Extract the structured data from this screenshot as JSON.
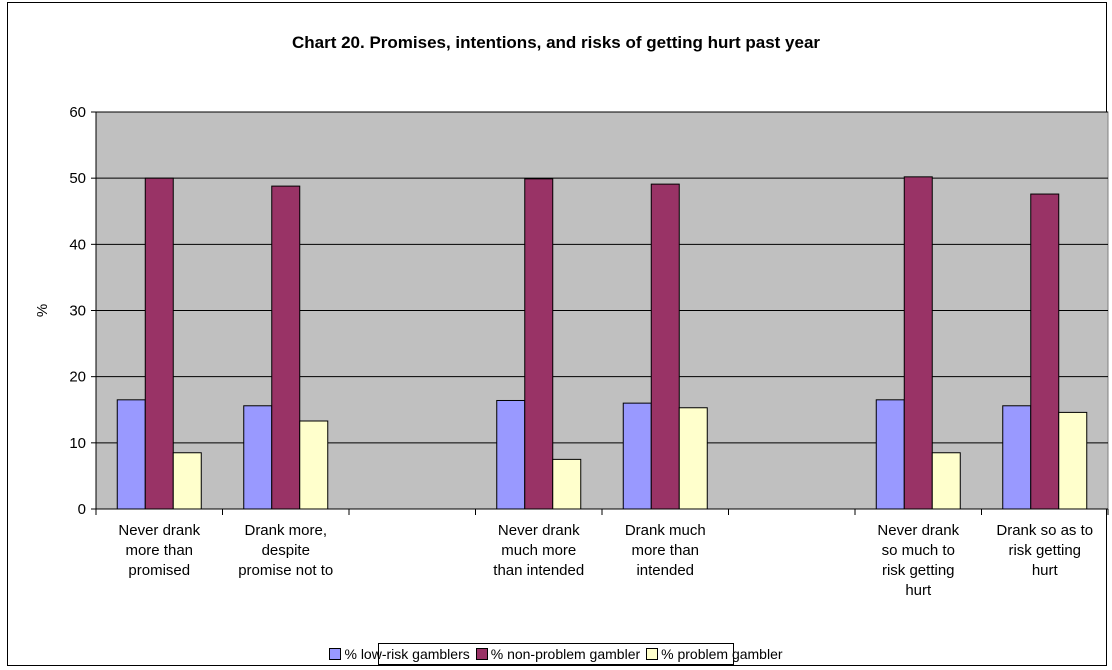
{
  "chart_data": {
    "type": "bar",
    "title": "Chart 20. Promises, intentions, and risks of getting hurt past year",
    "xlabel": "",
    "ylabel": "%",
    "ylim": [
      0,
      60
    ],
    "yticks": [
      0,
      10,
      20,
      30,
      40,
      50,
      60
    ],
    "grid": true,
    "legend": "bottom",
    "plot_background": "#C0C0C0",
    "categories": [
      "Never drank more than promised",
      "Drank more, despite promise not to",
      "",
      "Never drank much more than intended",
      "Drank much more than intended",
      "",
      "Never drank so much to risk getting hurt",
      "Drank so as to risk getting hurt"
    ],
    "category_lines": [
      [
        "Never drank",
        "more than",
        "promised"
      ],
      [
        "Drank more,",
        "despite",
        "promise not to"
      ],
      [],
      [
        "Never drank",
        "much more",
        "than intended"
      ],
      [
        "Drank much",
        "more than",
        "intended"
      ],
      [],
      [
        "Never drank",
        "so much to",
        "risk getting",
        "hurt"
      ],
      [
        "Drank so as to",
        "risk getting",
        "hurt"
      ]
    ],
    "series": [
      {
        "name": "% low-risk gamblers",
        "color": "#9999FF",
        "values": [
          16.5,
          15.6,
          null,
          16.4,
          16.0,
          null,
          16.5,
          15.6
        ]
      },
      {
        "name": "% non-problem gambler",
        "color": "#993366",
        "values": [
          50.0,
          48.8,
          null,
          49.9,
          49.1,
          null,
          50.2,
          47.6
        ]
      },
      {
        "name": "% problem gambler",
        "color": "#FFFFCC",
        "values": [
          8.5,
          13.3,
          null,
          7.5,
          15.3,
          null,
          8.5,
          14.6
        ]
      }
    ]
  }
}
